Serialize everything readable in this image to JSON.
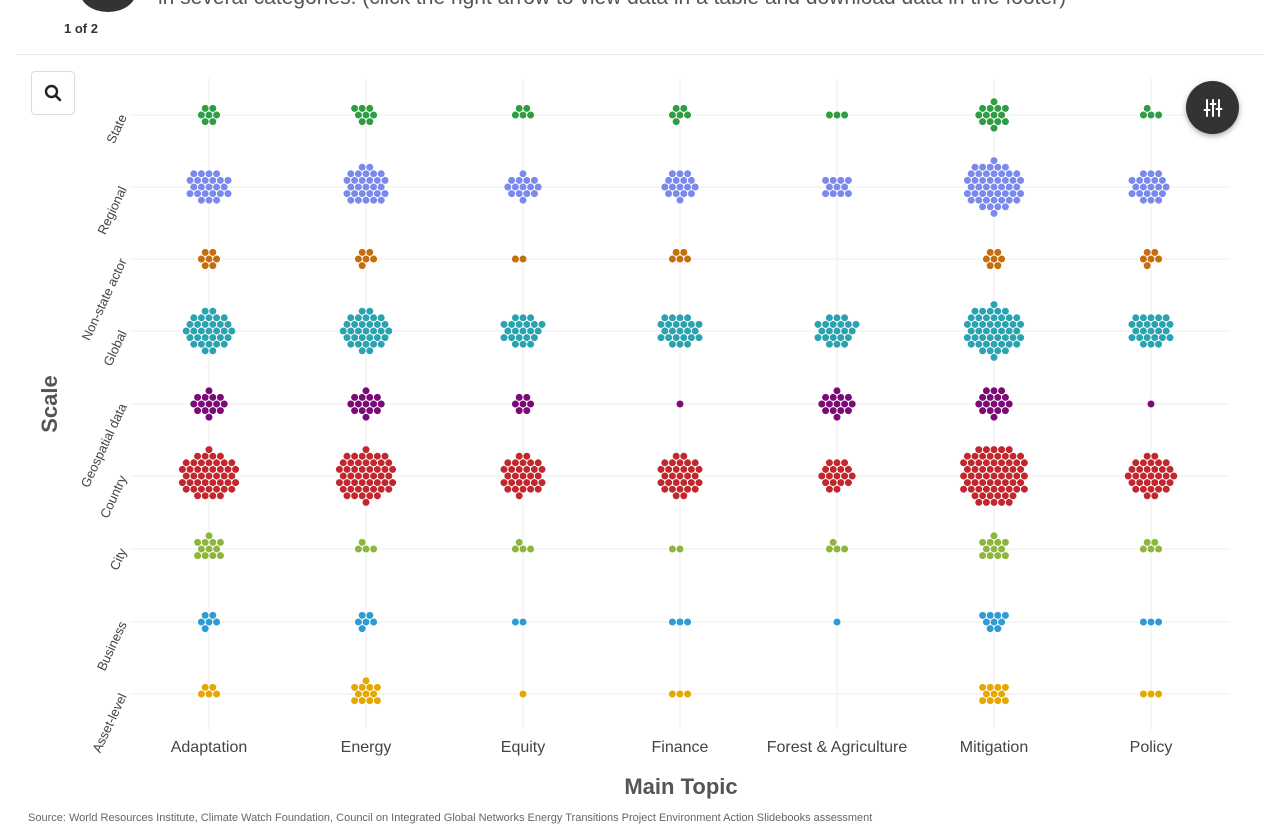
{
  "header": {
    "description": "in several categories. (click the right arrow to view data in a table and download data in the footer)",
    "pager": "1 of 2"
  },
  "controls": {
    "search_icon": "search-icon",
    "filter_icon": "sliders-icon"
  },
  "source_note": "Source: World Resources Institute, Climate Watch Foundation, Council on Integrated Global Networks Energy Transitions Project Environment Action Slidebooks assessment",
  "chart_data": {
    "type": "scatter",
    "subtype": "beeswarm",
    "xlabel": "Main Topic",
    "ylabel": "Scale",
    "categories": [
      "Adaptation",
      "Energy",
      "Equity",
      "Finance",
      "Forest & Agriculture",
      "Mitigation",
      "Policy"
    ],
    "rows": [
      "State",
      "Regional",
      "Non-state actor",
      "Global",
      "Geospatial data",
      "Country",
      "City",
      "Business",
      "Asset-level"
    ],
    "row_colors": {
      "State": "#2e9e44",
      "Regional": "#7b88ec",
      "Non-state actor": "#c66e0b",
      "Global": "#2aa3b0",
      "Geospatial data": "#7b0a77",
      "Country": "#c1272d",
      "City": "#8db63c",
      "Business": "#2e9bd3",
      "Asset-level": "#e6a800"
    },
    "counts": {
      "State": [
        7,
        8,
        5,
        6,
        3,
        14,
        4
      ],
      "Regional": [
        24,
        29,
        15,
        17,
        11,
        48,
        21
      ],
      "Non-state actor": [
        7,
        6,
        2,
        5,
        0,
        7,
        6
      ],
      "Global": [
        33,
        33,
        22,
        24,
        22,
        48,
        25
      ],
      "Geospatial data": [
        15,
        15,
        7,
        1,
        15,
        17,
        1
      ],
      "Country": [
        46,
        50,
        30,
        31,
        18,
        67,
        33
      ],
      "City": [
        12,
        4,
        4,
        2,
        4,
        12,
        5
      ],
      "Business": [
        6,
        6,
        2,
        3,
        1,
        9,
        3
      ],
      "Asset-level": [
        5,
        12,
        1,
        3,
        0,
        11,
        3
      ]
    },
    "grid": true,
    "legend": "none"
  }
}
